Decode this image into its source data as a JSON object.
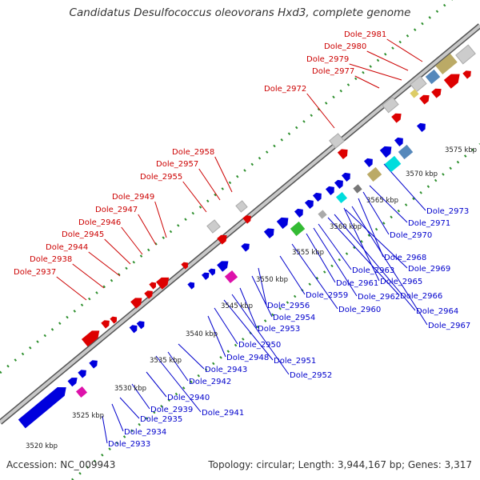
{
  "header": {
    "title": "Candidatus Desulfococcus oleovorans Hxd3, complete genome"
  },
  "footer": {
    "accession": "Accession: NC_009943",
    "stats": "Topology: circular; Length: 3,944,167 bp; Genes: 3,317"
  },
  "colors": {
    "reverse_label": "#cc0000",
    "forward_label": "#0000cc",
    "axis_fill": "#c8c8c8",
    "axis_stroke": "#555555",
    "dots": "#2d8f2d"
  },
  "scale_ticks": [
    "3520 kbp",
    "3525 kbp",
    "3530 kbp",
    "3535 kbp",
    "3540 kbp",
    "3545 kbp",
    "3550 kbp",
    "3555 kbp",
    "3560 kbp",
    "3565 kbp",
    "3570 kbp",
    "3575 kbp"
  ],
  "reverse_labels": [
    "Dole_2937",
    "Dole_2938",
    "Dole_2944",
    "Dole_2945",
    "Dole_2946",
    "Dole_2947",
    "Dole_2949",
    "Dole_2955",
    "Dole_2957",
    "Dole_2958",
    "Dole_2972",
    "Dole_2977",
    "Dole_2979",
    "Dole_2980",
    "Dole_2981"
  ],
  "forward_labels": [
    "Dole_2933",
    "Dole_2934",
    "Dole_2935",
    "Dole_2939",
    "Dole_2940",
    "Dole_2941",
    "Dole_2942",
    "Dole_2943",
    "Dole_2948",
    "Dole_2950",
    "Dole_2951",
    "Dole_2952",
    "Dole_2953",
    "Dole_2954",
    "Dole_2956",
    "Dole_2959",
    "Dole_2960",
    "Dole_2961",
    "Dole_2962",
    "Dole_2963",
    "Dole_2964",
    "Dole_2965",
    "Dole_2966",
    "Dole_2967",
    "Dole_2968",
    "Dole_2969",
    "Dole_2970",
    "Dole_2971",
    "Dole_2973"
  ]
}
